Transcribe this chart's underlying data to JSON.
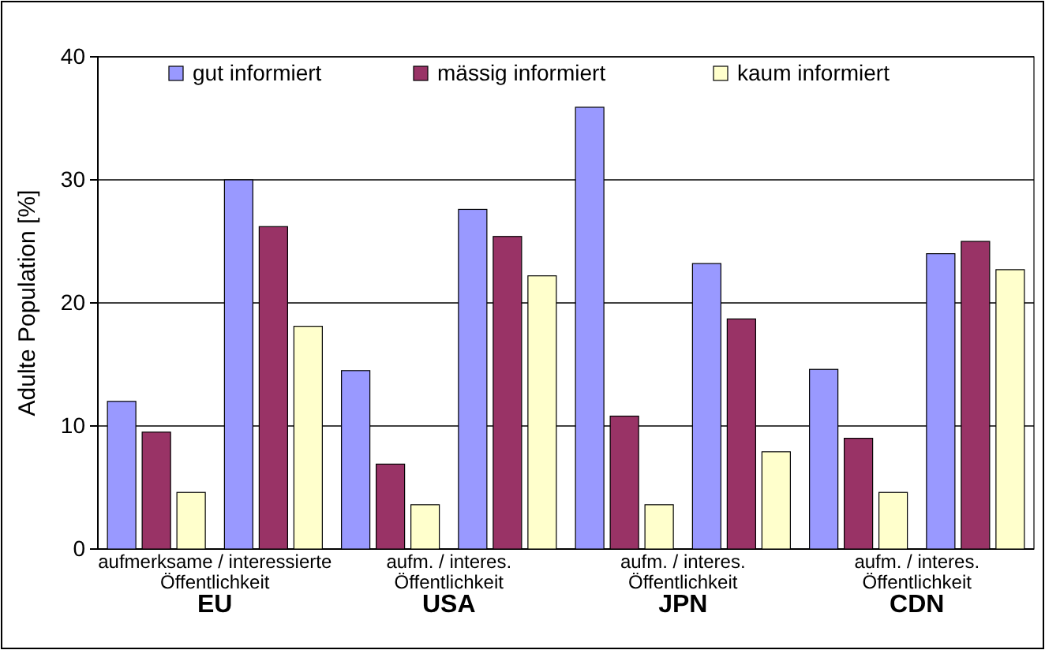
{
  "chart_data": {
    "type": "bar",
    "ylabel": "Adulte Population [%]",
    "categories": [
      null,
      null,
      null,
      null,
      null,
      null,
      null,
      null
    ],
    "series": [
      {
        "name": "gut informiert",
        "color": "#9999ff",
        "values": [
          12,
          30,
          14.5,
          27.6,
          35.9,
          23.2,
          14.6,
          24
        ]
      },
      {
        "name": "mässig informiert",
        "color": "#993366",
        "values": [
          9.5,
          26.2,
          6.9,
          25.4,
          10.8,
          18.7,
          9,
          25
        ]
      },
      {
        "name": "kaum informiert",
        "color": "#ffffcc",
        "values": [
          4.6,
          18.1,
          3.6,
          22.2,
          3.6,
          7.9,
          4.6,
          22.7
        ]
      }
    ],
    "ylim": [
      0,
      40
    ],
    "yticks": [
      0,
      10,
      20,
      30,
      40
    ],
    "grid": "y",
    "legend": "top",
    "annotations": [
      "aufmerksame / interessierte\nÖffentlichkeit",
      "EU",
      "aufm. / interes.\nÖffentlichkeit",
      "USA",
      "aufm. / interes.\nÖffentlichkeit",
      "JPN",
      "aufm. / interes.\nÖffentlichkeit",
      "CDN"
    ]
  }
}
